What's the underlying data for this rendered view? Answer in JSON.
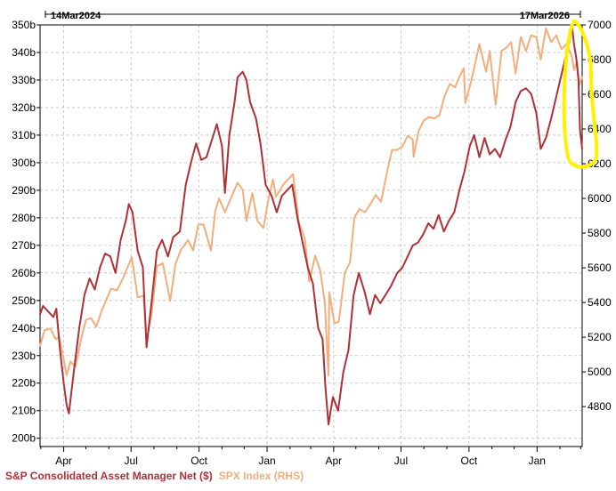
{
  "chart_data": {
    "type": "line",
    "start_date_label": "14Mar2024",
    "end_date_label": "17Mar2026",
    "x_tick_labels": [
      "Apr",
      "Jul",
      "Oct",
      "Jan",
      "Apr",
      "Jul",
      "Oct",
      "Jan"
    ],
    "left_axis": {
      "ylim": [
        197,
        350
      ],
      "tick_labels": [
        "200b",
        "210b",
        "220b",
        "230b",
        "240b",
        "250b",
        "260b",
        "270b",
        "280b",
        "290b",
        "300b",
        "310b",
        "320b",
        "330b",
        "340b",
        "350b"
      ]
    },
    "right_axis": {
      "ylim": [
        4570,
        7000
      ],
      "tick_labels": [
        "4800",
        "5000",
        "5200",
        "5400",
        "5600",
        "5800",
        "6000",
        "6200",
        "6400",
        "6600",
        "6800",
        "7000"
      ]
    },
    "grid": true,
    "legend_position": "bottom-left",
    "series": [
      {
        "name": "S&P Consolidated Asset Manager Net ($)",
        "axis": "left",
        "color": "#b03038",
        "points": [
          [
            "2024-03-14",
            245
          ],
          [
            "2024-03-18",
            248
          ],
          [
            "2024-03-25",
            246
          ],
          [
            "2024-04-01",
            244
          ],
          [
            "2024-04-05",
            247
          ],
          [
            "2024-04-10",
            232
          ],
          [
            "2024-04-15",
            220
          ],
          [
            "2024-04-19",
            212
          ],
          [
            "2024-04-22",
            209
          ],
          [
            "2024-04-29",
            225
          ],
          [
            "2024-05-06",
            240
          ],
          [
            "2024-05-13",
            252
          ],
          [
            "2024-05-20",
            258
          ],
          [
            "2024-05-27",
            254
          ],
          [
            "2024-06-03",
            262
          ],
          [
            "2024-06-10",
            267
          ],
          [
            "2024-06-17",
            266
          ],
          [
            "2024-06-24",
            260
          ],
          [
            "2024-07-01",
            272
          ],
          [
            "2024-07-08",
            279
          ],
          [
            "2024-07-12",
            285
          ],
          [
            "2024-07-17",
            282
          ],
          [
            "2024-07-24",
            268
          ],
          [
            "2024-07-31",
            262
          ],
          [
            "2024-08-05",
            233
          ],
          [
            "2024-08-12",
            250
          ],
          [
            "2024-08-19",
            268
          ],
          [
            "2024-08-26",
            272
          ],
          [
            "2024-09-03",
            266
          ],
          [
            "2024-09-10",
            273
          ],
          [
            "2024-09-19",
            275
          ],
          [
            "2024-09-27",
            292
          ],
          [
            "2024-10-04",
            300
          ],
          [
            "2024-10-11",
            307
          ],
          [
            "2024-10-18",
            301
          ],
          [
            "2024-10-25",
            302
          ],
          [
            "2024-11-01",
            308
          ],
          [
            "2024-11-08",
            314
          ],
          [
            "2024-11-15",
            306
          ],
          [
            "2024-11-19",
            289
          ],
          [
            "2024-11-25",
            310
          ],
          [
            "2024-12-02",
            322
          ],
          [
            "2024-12-06",
            331
          ],
          [
            "2024-12-13",
            333
          ],
          [
            "2024-12-18",
            330
          ],
          [
            "2024-12-23",
            322
          ],
          [
            "2024-12-31",
            316
          ],
          [
            "2025-01-06",
            307
          ],
          [
            "2025-01-13",
            292
          ],
          [
            "2025-01-21",
            288
          ],
          [
            "2025-01-28",
            282
          ],
          [
            "2025-02-04",
            288
          ],
          [
            "2025-02-11",
            290
          ],
          [
            "2025-02-18",
            292
          ],
          [
            "2025-02-25",
            280
          ],
          [
            "2025-03-04",
            271
          ],
          [
            "2025-03-11",
            262
          ],
          [
            "2025-03-18",
            256
          ],
          [
            "2025-03-25",
            240
          ],
          [
            "2025-03-31",
            236
          ],
          [
            "2025-04-04",
            218
          ],
          [
            "2025-04-08",
            205
          ],
          [
            "2025-04-14",
            215
          ],
          [
            "2025-04-21",
            210
          ],
          [
            "2025-04-28",
            224
          ],
          [
            "2025-05-05",
            232
          ],
          [
            "2025-05-12",
            252
          ],
          [
            "2025-05-19",
            260
          ],
          [
            "2025-05-27",
            253
          ],
          [
            "2025-06-03",
            245
          ],
          [
            "2025-06-10",
            252
          ],
          [
            "2025-06-17",
            249
          ],
          [
            "2025-06-24",
            252
          ],
          [
            "2025-07-01",
            255
          ],
          [
            "2025-07-10",
            260
          ],
          [
            "2025-07-17",
            262
          ],
          [
            "2025-07-24",
            266
          ],
          [
            "2025-07-31",
            270
          ],
          [
            "2025-08-07",
            271
          ],
          [
            "2025-08-14",
            274
          ],
          [
            "2025-08-21",
            278
          ],
          [
            "2025-08-28",
            276
          ],
          [
            "2025-09-04",
            281
          ],
          [
            "2025-09-11",
            275
          ],
          [
            "2025-09-18",
            279
          ],
          [
            "2025-09-25",
            282
          ],
          [
            "2025-10-02",
            290
          ],
          [
            "2025-10-09",
            297
          ],
          [
            "2025-10-16",
            306
          ],
          [
            "2025-10-22",
            310
          ],
          [
            "2025-10-29",
            302
          ],
          [
            "2025-11-05",
            309
          ],
          [
            "2025-11-12",
            303
          ],
          [
            "2025-11-19",
            305
          ],
          [
            "2025-11-26",
            302
          ],
          [
            "2025-12-03",
            308
          ],
          [
            "2025-12-10",
            313
          ],
          [
            "2025-12-17",
            322
          ],
          [
            "2025-12-24",
            326
          ],
          [
            "2025-12-31",
            327
          ],
          [
            "2026-01-07",
            325
          ],
          [
            "2026-01-14",
            318
          ],
          [
            "2026-01-20",
            305
          ],
          [
            "2026-01-27",
            309
          ],
          [
            "2026-02-03",
            316
          ],
          [
            "2026-02-10",
            324
          ],
          [
            "2026-02-17",
            332
          ],
          [
            "2026-02-24",
            340
          ],
          [
            "2026-02-28",
            344
          ],
          [
            "2026-03-03",
            350
          ],
          [
            "2026-03-06",
            343
          ],
          [
            "2026-03-09",
            338
          ],
          [
            "2026-03-12",
            330
          ],
          [
            "2026-03-14",
            312
          ],
          [
            "2026-03-17",
            305
          ]
        ]
      },
      {
        "name": "SPX Index (RHS)",
        "axis": "right",
        "color": "#f2ae7c",
        "points": [
          [
            "2024-03-14",
            5150
          ],
          [
            "2024-03-20",
            5240
          ],
          [
            "2024-03-28",
            5250
          ],
          [
            "2024-04-04",
            5190
          ],
          [
            "2024-04-09",
            5200
          ],
          [
            "2024-04-15",
            5070
          ],
          [
            "2024-04-19",
            4980
          ],
          [
            "2024-04-24",
            5060
          ],
          [
            "2024-05-01",
            5030
          ],
          [
            "2024-05-08",
            5180
          ],
          [
            "2024-05-15",
            5300
          ],
          [
            "2024-05-22",
            5310
          ],
          [
            "2024-05-29",
            5260
          ],
          [
            "2024-06-05",
            5350
          ],
          [
            "2024-06-12",
            5420
          ],
          [
            "2024-06-18",
            5480
          ],
          [
            "2024-06-26",
            5470
          ],
          [
            "2024-07-03",
            5530
          ],
          [
            "2024-07-10",
            5600
          ],
          [
            "2024-07-16",
            5660
          ],
          [
            "2024-07-24",
            5430
          ],
          [
            "2024-08-01",
            5440
          ],
          [
            "2024-08-05",
            5180
          ],
          [
            "2024-08-12",
            5340
          ],
          [
            "2024-08-19",
            5610
          ],
          [
            "2024-08-27",
            5625
          ],
          [
            "2024-09-06",
            5410
          ],
          [
            "2024-09-13",
            5620
          ],
          [
            "2024-09-20",
            5700
          ],
          [
            "2024-09-30",
            5760
          ],
          [
            "2024-10-07",
            5700
          ],
          [
            "2024-10-14",
            5850
          ],
          [
            "2024-10-21",
            5850
          ],
          [
            "2024-10-31",
            5700
          ],
          [
            "2024-11-06",
            5930
          ],
          [
            "2024-11-11",
            6000
          ],
          [
            "2024-11-19",
            5920
          ],
          [
            "2024-11-27",
            6000
          ],
          [
            "2024-12-06",
            6090
          ],
          [
            "2024-12-13",
            6050
          ],
          [
            "2024-12-18",
            5870
          ],
          [
            "2024-12-26",
            6030
          ],
          [
            "2025-01-02",
            5870
          ],
          [
            "2025-01-10",
            5830
          ],
          [
            "2025-01-17",
            6000
          ],
          [
            "2025-01-23",
            6110
          ],
          [
            "2025-01-27",
            6010
          ],
          [
            "2025-02-06",
            6080
          ],
          [
            "2025-02-19",
            6140
          ],
          [
            "2025-02-27",
            5860
          ],
          [
            "2025-03-07",
            5770
          ],
          [
            "2025-03-13",
            5520
          ],
          [
            "2025-03-21",
            5670
          ],
          [
            "2025-03-28",
            5580
          ],
          [
            "2025-04-03",
            5400
          ],
          [
            "2025-04-08",
            4980
          ],
          [
            "2025-04-09",
            5460
          ],
          [
            "2025-04-16",
            5280
          ],
          [
            "2025-04-22",
            5290
          ],
          [
            "2025-04-30",
            5570
          ],
          [
            "2025-05-07",
            5630
          ],
          [
            "2025-05-13",
            5890
          ],
          [
            "2025-05-20",
            5940
          ],
          [
            "2025-05-27",
            5920
          ],
          [
            "2025-06-04",
            5970
          ],
          [
            "2025-06-11",
            6020
          ],
          [
            "2025-06-18",
            5980
          ],
          [
            "2025-06-27",
            6170
          ],
          [
            "2025-07-03",
            6280
          ],
          [
            "2025-07-10",
            6280
          ],
          [
            "2025-07-17",
            6300
          ],
          [
            "2025-07-24",
            6360
          ],
          [
            "2025-07-31",
            6340
          ],
          [
            "2025-08-01",
            6240
          ],
          [
            "2025-08-08",
            6390
          ],
          [
            "2025-08-15",
            6450
          ],
          [
            "2025-08-22",
            6470
          ],
          [
            "2025-08-29",
            6460
          ],
          [
            "2025-09-05",
            6480
          ],
          [
            "2025-09-12",
            6590
          ],
          [
            "2025-09-19",
            6660
          ],
          [
            "2025-09-26",
            6640
          ],
          [
            "2025-10-03",
            6710
          ],
          [
            "2025-10-08",
            6750
          ],
          [
            "2025-10-10",
            6550
          ],
          [
            "2025-10-17",
            6660
          ],
          [
            "2025-10-24",
            6790
          ],
          [
            "2025-10-29",
            6890
          ],
          [
            "2025-11-07",
            6730
          ],
          [
            "2025-11-12",
            6850
          ],
          [
            "2025-11-20",
            6540
          ],
          [
            "2025-11-28",
            6850
          ],
          [
            "2025-12-05",
            6870
          ],
          [
            "2025-12-11",
            6900
          ],
          [
            "2025-12-17",
            6720
          ],
          [
            "2025-12-24",
            6930
          ],
          [
            "2025-12-31",
            6850
          ],
          [
            "2026-01-07",
            6940
          ],
          [
            "2026-01-14",
            6930
          ],
          [
            "2026-01-20",
            6800
          ],
          [
            "2026-01-27",
            6980
          ],
          [
            "2026-02-03",
            6900
          ],
          [
            "2026-02-10",
            6940
          ],
          [
            "2026-02-17",
            6860
          ],
          [
            "2026-02-24",
            6890
          ],
          [
            "2026-03-03",
            6820
          ],
          [
            "2026-03-06",
            6740
          ],
          [
            "2026-03-10",
            6790
          ],
          [
            "2026-03-13",
            6650
          ],
          [
            "2026-03-17",
            6700
          ]
        ]
      }
    ],
    "annotation": {
      "type": "circled-highlight",
      "color": "#fff200",
      "from_date": "2026-02-24",
      "to_date": "2026-03-17"
    }
  }
}
